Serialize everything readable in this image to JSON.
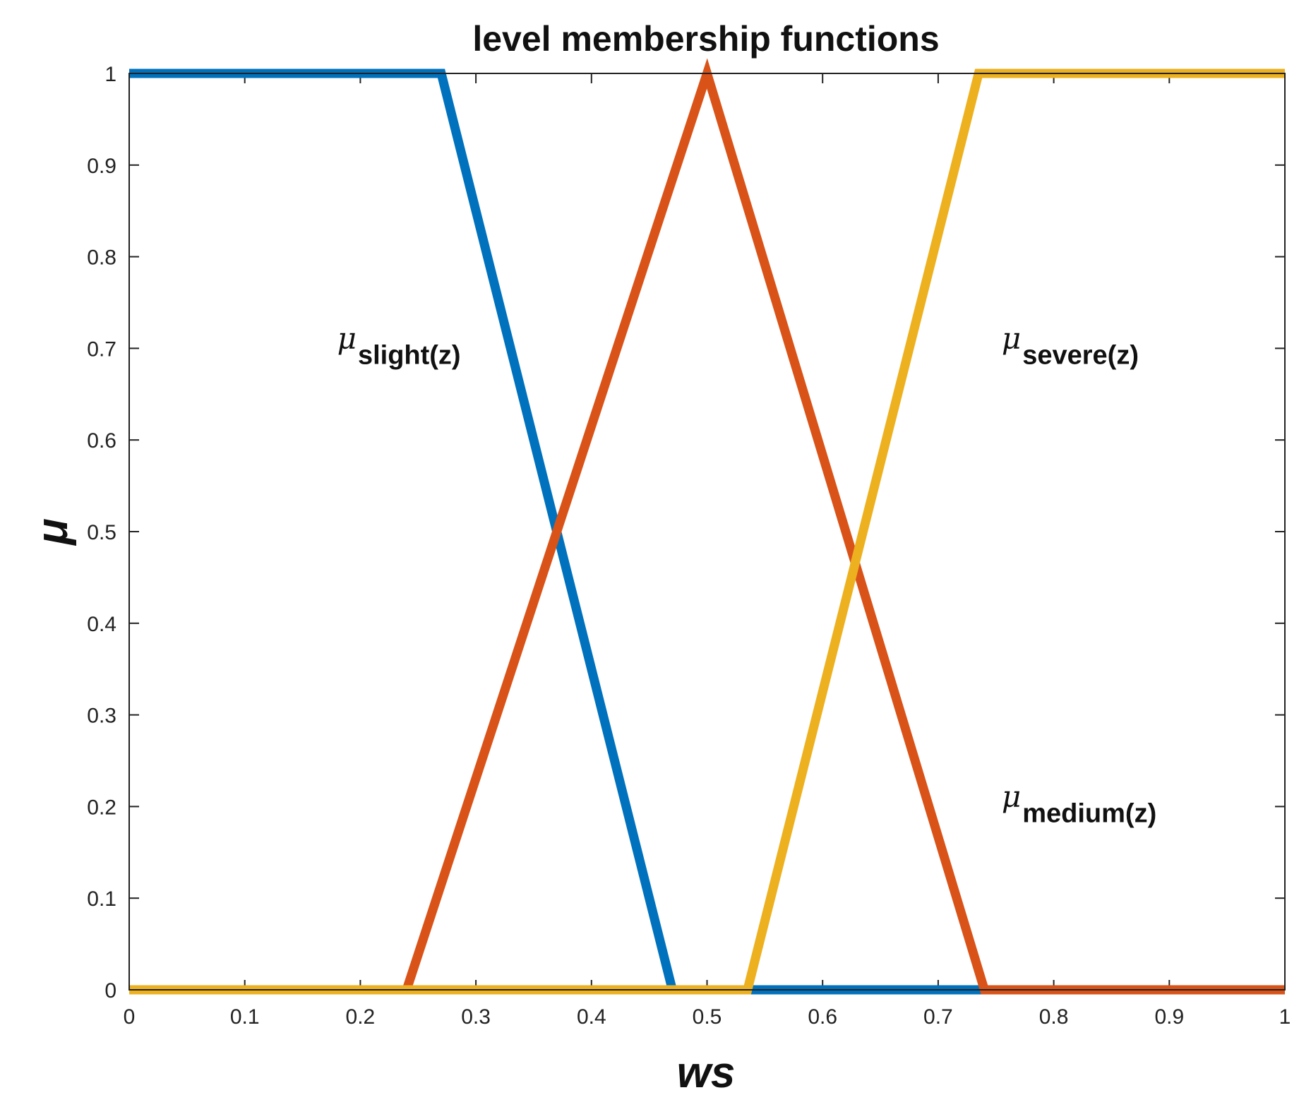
{
  "chart_data": {
    "type": "line",
    "title": "level membership functions",
    "xlabel": "ws",
    "ylabel": "μ",
    "xlim": [
      0,
      1
    ],
    "ylim": [
      0,
      1
    ],
    "x_ticks": [
      "0",
      "0.1",
      "0.2",
      "0.3",
      "0.4",
      "0.5",
      "0.6",
      "0.7",
      "0.8",
      "0.9",
      "1"
    ],
    "y_ticks": [
      "0",
      "0.1",
      "0.2",
      "0.3",
      "0.4",
      "0.5",
      "0.6",
      "0.7",
      "0.8",
      "0.9",
      "1"
    ],
    "grid": false,
    "legend": "none",
    "series": [
      {
        "color": "#0072BD",
        "x": [
          0,
          0.27,
          0.47,
          1
        ],
        "y": [
          1,
          1,
          0,
          0
        ]
      },
      {
        "color": "#D95319",
        "x": [
          0,
          0.24,
          0.5,
          0.74,
          1
        ],
        "y": [
          0,
          0,
          1,
          0,
          0
        ]
      },
      {
        "color": "#EDB120",
        "x": [
          0,
          0.535,
          0.735,
          1
        ],
        "y": [
          0,
          0,
          1,
          1
        ]
      }
    ],
    "annotations": [
      {
        "symbol": "μ",
        "subscript": "slight(z)",
        "x": 0.18,
        "y": 0.7
      },
      {
        "symbol": "μ",
        "subscript": "severe(z)",
        "x": 0.755,
        "y": 0.7
      },
      {
        "symbol": "μ",
        "subscript": "medium(z)",
        "x": 0.755,
        "y": 0.2
      }
    ]
  }
}
